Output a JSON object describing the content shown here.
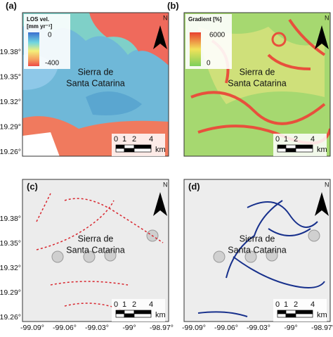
{
  "panels": [
    {
      "label": "(a)",
      "place": [
        "Sierra de",
        "Santa Catarina"
      ],
      "legend": {
        "title": [
          "LOS vel.",
          "[mm yr⁻¹]"
        ],
        "top": "0",
        "bottom": "-400"
      },
      "scale": [
        "0",
        "1",
        "2",
        "4"
      ],
      "unit": "km",
      "north": "N"
    },
    {
      "label": "(b)",
      "place": [
        "Sierra de",
        "Santa Catarina"
      ],
      "legend": {
        "title": [
          "Gradient  [%]"
        ],
        "top": "6000",
        "bottom": "0"
      },
      "scale": [
        "0",
        "1",
        "2",
        "4"
      ],
      "unit": "km",
      "north": "N"
    },
    {
      "label": "(c)",
      "place": [
        "Sierra de",
        "Santa Catarina"
      ],
      "scale": [
        "0",
        "1",
        "2",
        "4"
      ],
      "unit": "km",
      "north": "N"
    },
    {
      "label": "(d)",
      "place": [
        "Sierra de",
        "Santa Catarina"
      ],
      "scale": [
        "0",
        "1",
        "2",
        "4"
      ],
      "unit": "km",
      "north": "N"
    }
  ],
  "y_labels": [
    "19.38°",
    "19.35°",
    "19.32°",
    "19.29°",
    "19.26°"
  ],
  "x_labels": [
    "-99.09°",
    "-99.06°",
    "-99.03°",
    "-99°",
    "-98.97°"
  ]
}
